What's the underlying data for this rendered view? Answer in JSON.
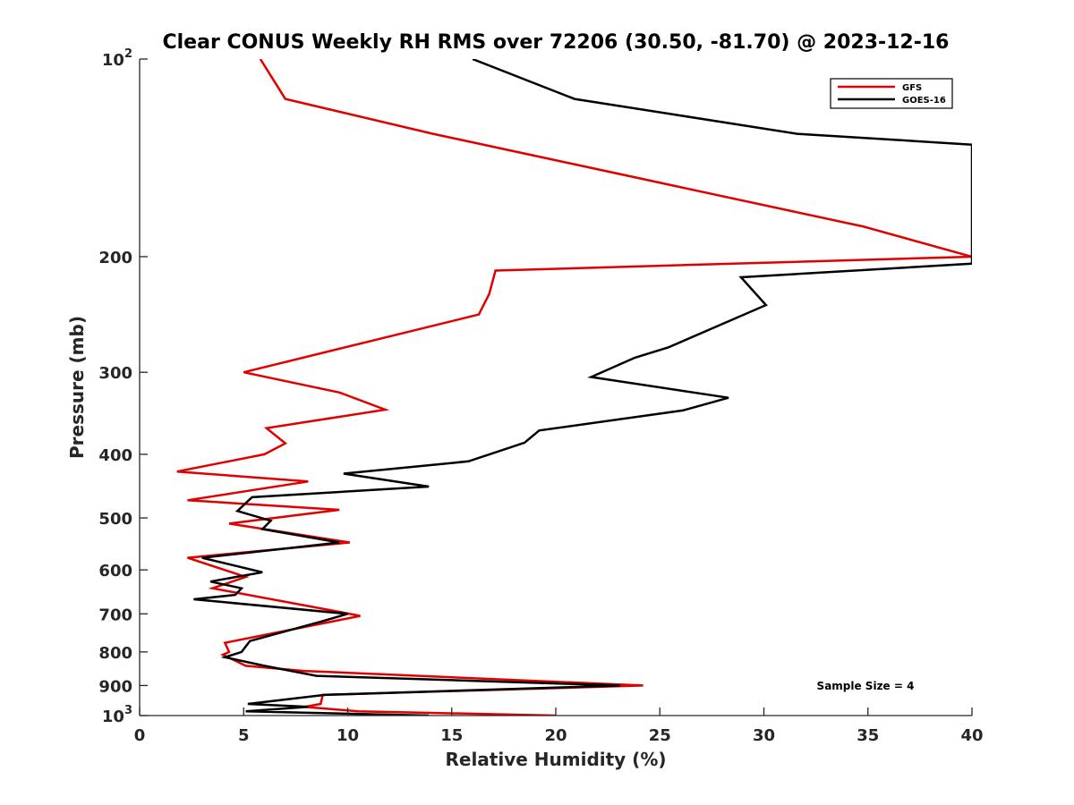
{
  "chart_data": {
    "type": "line",
    "title": "Clear CONUS Weekly RH RMS over 72206 (30.50, -81.70) @ 2023-12-16",
    "xlabel": "Relative Humidity (%)",
    "ylabel": "Pressure (mb)",
    "xlim": [
      0,
      40
    ],
    "ylim": [
      100,
      1000
    ],
    "y_scale": "log",
    "y_reversed": true,
    "x_ticks": [
      0,
      5,
      10,
      15,
      20,
      25,
      30,
      35,
      40
    ],
    "y_ticks": [
      {
        "value": 100,
        "base": "10",
        "exp": "2"
      },
      {
        "value": 200,
        "label": "200"
      },
      {
        "value": 300,
        "label": "300"
      },
      {
        "value": 400,
        "label": "400"
      },
      {
        "value": 500,
        "label": "500"
      },
      {
        "value": 600,
        "label": "600"
      },
      {
        "value": 700,
        "label": "700"
      },
      {
        "value": 800,
        "label": "800"
      },
      {
        "value": 900,
        "label": "900"
      },
      {
        "value": 1000,
        "base": "10",
        "exp": "3"
      }
    ],
    "legend_position": "top-right",
    "annotation": "Sample Size = 4",
    "series": [
      {
        "name": "GFS",
        "color": "#e00000",
        "points": [
          [
            5.8,
            100
          ],
          [
            7.0,
            115
          ],
          [
            14.1,
            130
          ],
          [
            34.8,
            180
          ],
          [
            40.0,
            200
          ],
          [
            17.1,
            210
          ],
          [
            16.8,
            228
          ],
          [
            16.3,
            245
          ],
          [
            5.0,
            300
          ],
          [
            9.6,
            322
          ],
          [
            11.8,
            342
          ],
          [
            6.1,
            365
          ],
          [
            7.0,
            385
          ],
          [
            6.0,
            400
          ],
          [
            1.8,
            425
          ],
          [
            8.1,
            440
          ],
          [
            2.3,
            470
          ],
          [
            9.6,
            486
          ],
          [
            4.3,
            510
          ],
          [
            10.1,
            545
          ],
          [
            2.3,
            575
          ],
          [
            5.1,
            615
          ],
          [
            3.5,
            640
          ],
          [
            9.7,
            696
          ],
          [
            10.6,
            705
          ],
          [
            4.1,
            775
          ],
          [
            4.3,
            800
          ],
          [
            4.0,
            808
          ],
          [
            5.1,
            840
          ],
          [
            7.9,
            855
          ],
          [
            24.2,
            900
          ],
          [
            8.8,
            930
          ],
          [
            8.7,
            960
          ],
          [
            7.9,
            970
          ],
          [
            10.5,
            985
          ],
          [
            20.0,
            1000
          ]
        ]
      },
      {
        "name": "GOES-16",
        "color": "#000000",
        "points": [
          [
            16.0,
            100
          ],
          [
            20.9,
            115
          ],
          [
            31.6,
            130
          ],
          [
            40.0,
            135
          ],
          [
            40.0,
            205
          ],
          [
            28.9,
            215
          ],
          [
            30.1,
            237
          ],
          [
            25.4,
            275
          ],
          [
            23.8,
            285
          ],
          [
            21.7,
            305
          ],
          [
            28.3,
            328
          ],
          [
            26.1,
            343
          ],
          [
            19.2,
            368
          ],
          [
            18.5,
            384
          ],
          [
            15.8,
            410
          ],
          [
            9.8,
            428
          ],
          [
            13.9,
            448
          ],
          [
            5.4,
            465
          ],
          [
            4.7,
            488
          ],
          [
            6.3,
            505
          ],
          [
            5.9,
            520
          ],
          [
            9.6,
            545
          ],
          [
            3.0,
            575
          ],
          [
            5.9,
            605
          ],
          [
            3.4,
            625
          ],
          [
            4.9,
            640
          ],
          [
            4.6,
            655
          ],
          [
            2.6,
            665
          ],
          [
            10.0,
            700
          ],
          [
            8.8,
            718
          ],
          [
            5.3,
            770
          ],
          [
            4.9,
            800
          ],
          [
            4.1,
            815
          ],
          [
            6.0,
            840
          ],
          [
            8.5,
            870
          ],
          [
            23.1,
            900
          ],
          [
            8.9,
            930
          ],
          [
            5.2,
            960
          ],
          [
            8.1,
            970
          ],
          [
            5.1,
            985
          ],
          [
            13.9,
            1000
          ]
        ]
      }
    ]
  }
}
